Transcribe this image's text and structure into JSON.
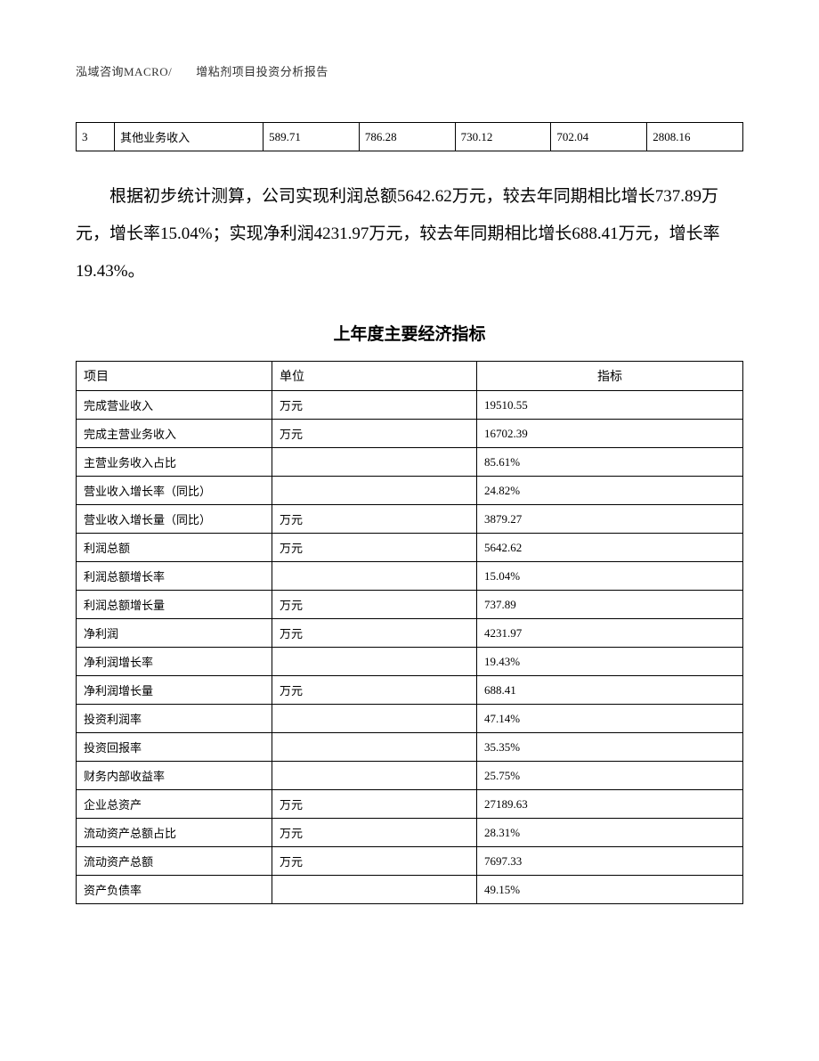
{
  "header": "泓域咨询MACRO/　　增粘剂项目投资分析报告",
  "top_table": {
    "row": {
      "idx": "3",
      "name": "其他业务收入",
      "v1": "589.71",
      "v2": "786.28",
      "v3": "730.12",
      "v4": "702.04",
      "v5": "2808.16"
    }
  },
  "paragraph": "根据初步统计测算，公司实现利润总额5642.62万元，较去年同期相比增长737.89万元，增长率15.04%；实现净利润4231.97万元，较去年同期相比增长688.41万元，增长率19.43%。",
  "main_table": {
    "title": "上年度主要经济指标",
    "headers": {
      "col1": "项目",
      "col2": "单位",
      "col3": "指标"
    },
    "rows": [
      {
        "item": "完成营业收入",
        "unit": "万元",
        "value": "19510.55"
      },
      {
        "item": "完成主营业务收入",
        "unit": "万元",
        "value": "16702.39"
      },
      {
        "item": "主营业务收入占比",
        "unit": "",
        "value": "85.61%"
      },
      {
        "item": "营业收入增长率（同比）",
        "unit": "",
        "value": "24.82%"
      },
      {
        "item": "营业收入增长量（同比）",
        "unit": "万元",
        "value": "3879.27"
      },
      {
        "item": "利润总额",
        "unit": "万元",
        "value": "5642.62"
      },
      {
        "item": "利润总额增长率",
        "unit": "",
        "value": "15.04%"
      },
      {
        "item": "利润总额增长量",
        "unit": "万元",
        "value": "737.89"
      },
      {
        "item": "净利润",
        "unit": "万元",
        "value": "4231.97"
      },
      {
        "item": "净利润增长率",
        "unit": "",
        "value": "19.43%"
      },
      {
        "item": "净利润增长量",
        "unit": "万元",
        "value": "688.41"
      },
      {
        "item": "投资利润率",
        "unit": "",
        "value": "47.14%"
      },
      {
        "item": "投资回报率",
        "unit": "",
        "value": "35.35%"
      },
      {
        "item": "财务内部收益率",
        "unit": "",
        "value": "25.75%"
      },
      {
        "item": "企业总资产",
        "unit": "万元",
        "value": "27189.63"
      },
      {
        "item": "流动资产总额占比",
        "unit": "万元",
        "value": "28.31%"
      },
      {
        "item": "流动资产总额",
        "unit": "万元",
        "value": "7697.33"
      },
      {
        "item": "资产负债率",
        "unit": "",
        "value": "49.15%"
      }
    ]
  }
}
